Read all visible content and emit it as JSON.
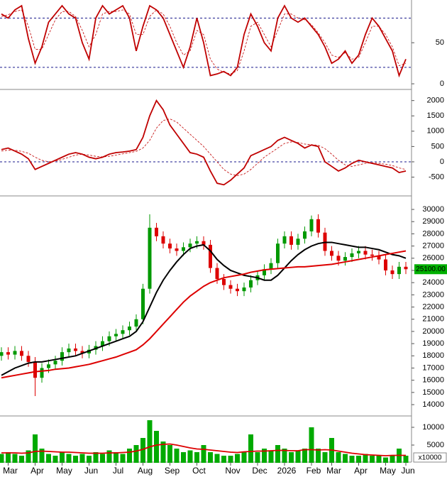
{
  "chart_data": [
    {
      "type": "line",
      "ylim": [
        -6,
        102
      ],
      "yticks": [
        0,
        50
      ],
      "ref_lines": [
        20,
        80
      ],
      "series": [
        {
          "color": "#c00000",
          "dashed": false,
          "values": [
            85,
            80,
            90,
            95,
            55,
            25,
            45,
            75,
            85,
            95,
            85,
            80,
            50,
            30,
            80,
            95,
            85,
            90,
            95,
            80,
            40,
            70,
            95,
            90,
            80,
            60,
            40,
            20,
            45,
            80,
            50,
            10,
            12,
            15,
            10,
            20,
            60,
            85,
            70,
            50,
            40,
            80,
            95,
            80,
            75,
            80,
            70,
            60,
            45,
            25,
            30,
            40,
            25,
            35,
            60,
            80,
            70,
            55,
            40,
            10,
            30
          ]
        },
        {
          "color": "#c00000",
          "dashed": true,
          "values": [
            82,
            84,
            88,
            90,
            70,
            42,
            42,
            60,
            78,
            88,
            88,
            82,
            65,
            45,
            60,
            85,
            88,
            88,
            90,
            85,
            60,
            60,
            82,
            90,
            85,
            70,
            50,
            35,
            40,
            65,
            60,
            30,
            18,
            14,
            12,
            16,
            40,
            70,
            75,
            60,
            45,
            65,
            85,
            85,
            80,
            78,
            72,
            62,
            50,
            35,
            32,
            38,
            30,
            32,
            50,
            70,
            70,
            60,
            45,
            22,
            25
          ]
        }
      ]
    },
    {
      "type": "line",
      "ylim": [
        -1090,
        2340
      ],
      "yticks": [
        -500,
        0,
        500,
        1000,
        1500,
        2000
      ],
      "ref_lines": [
        0
      ],
      "series": [
        {
          "color": "#c00000",
          "dashed": false,
          "values": [
            400,
            450,
            350,
            250,
            100,
            -250,
            -150,
            -50,
            50,
            150,
            250,
            300,
            250,
            150,
            100,
            150,
            250,
            300,
            320,
            350,
            400,
            800,
            1500,
            2000,
            1700,
            1200,
            900,
            600,
            300,
            250,
            150,
            -300,
            -700,
            -750,
            -600,
            -400,
            -200,
            200,
            300,
            400,
            500,
            700,
            800,
            700,
            600,
            450,
            550,
            500,
            0,
            -150,
            -300,
            -200,
            -50,
            50,
            0,
            -50,
            -100,
            -150,
            -200,
            -350,
            -300
          ]
        },
        {
          "color": "#c00000",
          "dashed": true,
          "values": [
            350,
            380,
            380,
            340,
            280,
            150,
            50,
            0,
            20,
            80,
            150,
            220,
            250,
            220,
            180,
            160,
            180,
            220,
            260,
            300,
            340,
            450,
            700,
            1100,
            1350,
            1400,
            1300,
            1100,
            900,
            700,
            500,
            250,
            0,
            -250,
            -400,
            -450,
            -400,
            -250,
            -50,
            150,
            300,
            450,
            600,
            650,
            630,
            580,
            560,
            540,
            430,
            250,
            50,
            -100,
            -150,
            -100,
            -50,
            -30,
            -50,
            -80,
            -120,
            -200,
            -250
          ]
        }
      ]
    },
    {
      "type": "candlestick",
      "ylim": [
        13130,
        31050
      ],
      "yticks": [
        14000,
        15000,
        16000,
        17000,
        18000,
        19000,
        20000,
        21000,
        22000,
        23000,
        24000,
        25000,
        26000,
        27000,
        28000,
        29000,
        30000
      ],
      "up_color": "#009900",
      "down_color": "#dd0000",
      "open": [
        18000,
        18300,
        18100,
        18400,
        18000,
        17500,
        16200,
        17000,
        17300,
        17600,
        18300,
        18600,
        18400,
        18200,
        18500,
        18800,
        19200,
        19600,
        19800,
        20100,
        20400,
        21000,
        23500,
        28500,
        27800,
        27200,
        26800,
        26600,
        26900,
        27200,
        27400,
        27100,
        25200,
        24300,
        23800,
        23500,
        23300,
        23600,
        24200,
        24600,
        25100,
        25600,
        27200,
        27800,
        27100,
        27600,
        28200,
        29200,
        28100,
        26600,
        26200,
        25800,
        26100,
        26400,
        26600,
        26300,
        26200,
        25900,
        25000,
        24700,
        25300
      ],
      "high": [
        18700,
        18700,
        18800,
        18800,
        18400,
        17900,
        17400,
        17700,
        18000,
        18700,
        19000,
        19000,
        18800,
        18900,
        19200,
        19600,
        20000,
        20200,
        20500,
        20800,
        21400,
        23900,
        29600,
        28900,
        28200,
        27600,
        27200,
        27300,
        27600,
        27800,
        27800,
        27500,
        25600,
        24700,
        24200,
        23900,
        24000,
        24600,
        25000,
        25500,
        26000,
        27600,
        28200,
        28200,
        28000,
        28600,
        29500,
        29600,
        28500,
        27000,
        26600,
        26500,
        26800,
        27000,
        27000,
        26700,
        26600,
        26300,
        25400,
        25700,
        25700
      ],
      "low": [
        17600,
        17700,
        17700,
        17600,
        17100,
        14700,
        15800,
        16600,
        16900,
        17200,
        17900,
        18000,
        17800,
        17800,
        18100,
        18400,
        18800,
        19200,
        19400,
        19700,
        20000,
        20600,
        23100,
        27400,
        26800,
        26400,
        26200,
        26200,
        26500,
        26800,
        26700,
        24800,
        23900,
        23400,
        23100,
        22900,
        22900,
        23200,
        23800,
        24200,
        24700,
        25200,
        26800,
        26700,
        26700,
        27200,
        27800,
        27700,
        26200,
        25800,
        25400,
        25400,
        25700,
        26000,
        25900,
        25800,
        25500,
        24600,
        24300,
        24300,
        24700
      ],
      "close": [
        18300,
        18100,
        18400,
        18000,
        17500,
        16200,
        17000,
        17300,
        17600,
        18300,
        18600,
        18400,
        18200,
        18500,
        18800,
        19200,
        19600,
        19800,
        20100,
        20400,
        21000,
        23500,
        28500,
        27800,
        27200,
        26800,
        26600,
        26900,
        27200,
        27400,
        27100,
        25200,
        24300,
        23800,
        23500,
        23300,
        23600,
        24200,
        24600,
        25100,
        25600,
        27200,
        27800,
        27100,
        27600,
        28200,
        29200,
        28100,
        26600,
        26200,
        25800,
        26100,
        26400,
        26600,
        26300,
        26200,
        25900,
        25000,
        24700,
        25300,
        25100
      ],
      "overlays": [
        {
          "color": "#000000",
          "values": [
            16400,
            16700,
            17000,
            17200,
            17400,
            17500,
            17500,
            17600,
            17700,
            17800,
            17900,
            18000,
            18200,
            18400,
            18600,
            18800,
            19000,
            19200,
            19400,
            19600,
            20000,
            20800,
            22000,
            23200,
            24200,
            25000,
            25700,
            26300,
            26800,
            27000,
            27100,
            26600,
            25900,
            25400,
            25000,
            24800,
            24600,
            24500,
            24400,
            24200,
            24200,
            24600,
            25200,
            25800,
            26300,
            26700,
            27000,
            27200,
            27300,
            27300,
            27200,
            27100,
            27000,
            26900,
            26900,
            26800,
            26700,
            26500,
            26300,
            26200,
            26000
          ]
        },
        {
          "color": "#dd0000",
          "values": [
            16200,
            16300,
            16400,
            16500,
            16600,
            16700,
            16750,
            16800,
            16900,
            16950,
            17000,
            17100,
            17200,
            17300,
            17450,
            17600,
            17750,
            17900,
            18100,
            18300,
            18500,
            18900,
            19400,
            20000,
            20600,
            21200,
            21800,
            22400,
            22900,
            23300,
            23700,
            24000,
            24200,
            24400,
            24500,
            24600,
            24700,
            24850,
            24950,
            25050,
            25100,
            25150,
            25200,
            25250,
            25300,
            25300,
            25350,
            25400,
            25450,
            25500,
            25600,
            25700,
            25800,
            25900,
            26000,
            26100,
            26200,
            26300,
            26400,
            26500,
            26600
          ]
        }
      ],
      "current": {
        "value": 25100,
        "label": "25100.00"
      }
    },
    {
      "type": "bar",
      "ylim": [
        0,
        13000
      ],
      "yticks": [
        5000,
        10000
      ],
      "y_unit_label": "x10000",
      "color": "#00aa00",
      "categories": [
        null,
        "Mar",
        null,
        null,
        null,
        "Apr",
        null,
        null,
        null,
        "May",
        null,
        null,
        null,
        "Jun",
        null,
        null,
        null,
        "Jul",
        null,
        null,
        null,
        "Aug",
        null,
        null,
        null,
        "Sep",
        null,
        null,
        null,
        "Oct",
        null,
        null,
        null,
        null,
        "Nov",
        null,
        null,
        null,
        "Dec",
        null,
        null,
        null,
        "2026",
        null,
        null,
        null,
        "Feb",
        null,
        null,
        "Mar",
        null,
        null,
        null,
        "Apr",
        null,
        null,
        null,
        "May",
        null,
        null,
        "Jun"
      ],
      "values": [
        2500,
        3000,
        2500,
        2000,
        3500,
        8000,
        4000,
        2500,
        2000,
        3000,
        2500,
        2000,
        2500,
        2000,
        3000,
        2500,
        3500,
        3000,
        2500,
        4000,
        5000,
        7000,
        12000,
        9000,
        6000,
        5000,
        4000,
        3000,
        3500,
        3000,
        5000,
        3000,
        2500,
        2000,
        2000,
        2500,
        3000,
        8000,
        3000,
        4000,
        3500,
        5000,
        4000,
        3000,
        3500,
        4000,
        10000,
        4000,
        3000,
        7000,
        3000,
        2500,
        2000,
        2000,
        2500,
        2000,
        2000,
        1500,
        2000,
        4000,
        2000
      ],
      "overlays": [
        {
          "color": "#dd0000",
          "values": [
            2800,
            2800,
            2800,
            2700,
            2800,
            3200,
            3300,
            3200,
            3100,
            3000,
            3000,
            2900,
            2800,
            2700,
            2700,
            2700,
            2800,
            2800,
            2900,
            3000,
            3300,
            3800,
            4500,
            5000,
            5200,
            5300,
            5000,
            4600,
            4200,
            3900,
            3800,
            3600,
            3400,
            3200,
            3000,
            2900,
            3100,
            3200,
            3300,
            3300,
            3400,
            3500,
            3500,
            3400,
            3400,
            3700,
            3700,
            3600,
            3700,
            3600,
            3300,
            3000,
            2700,
            2500,
            2300,
            2200,
            2100,
            2000,
            2100,
            2100,
            2100
          ]
        }
      ]
    }
  ]
}
